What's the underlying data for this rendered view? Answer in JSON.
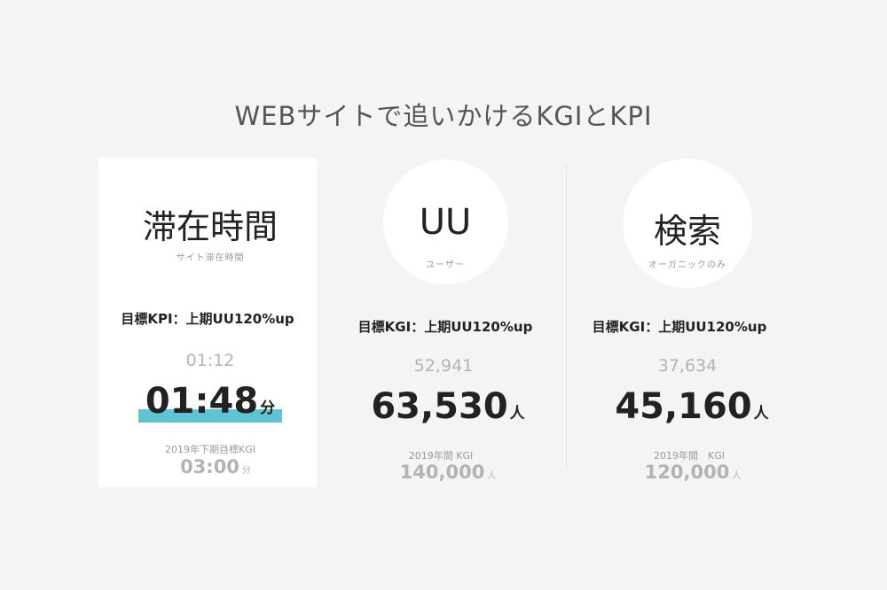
{
  "title": "WEBサイトで追いかけるKGIとKPI",
  "accent_color": "#5fc3d3",
  "panels": [
    {
      "heading": "滞在時間",
      "subtitle": "サイト滞在時間",
      "goal": "目標KPI：上期UU120%up",
      "previous": "01:12",
      "current": "01:48",
      "current_unit": "分",
      "current_highlight_bar": true,
      "kgi_label": "2019年下期目標KGI",
      "kgi_value": "03:00",
      "kgi_unit": "分"
    },
    {
      "heading": "UU",
      "subtitle": "ユーザー",
      "goal": "目標KGI：上期UU120%up",
      "previous": "52,941",
      "current": "63,530",
      "current_unit": "人",
      "kgi_label": "2019年間 KGI",
      "kgi_value": "140,000",
      "kgi_unit": "人"
    },
    {
      "heading": "検索",
      "subtitle": "オーガニックのみ",
      "goal": "目標KGI：上期UU120%up",
      "previous": "37,634",
      "current": "45,160",
      "current_unit": "人",
      "kgi_label": "2019年間　KGI",
      "kgi_value": "120,000",
      "kgi_unit": "人"
    }
  ]
}
